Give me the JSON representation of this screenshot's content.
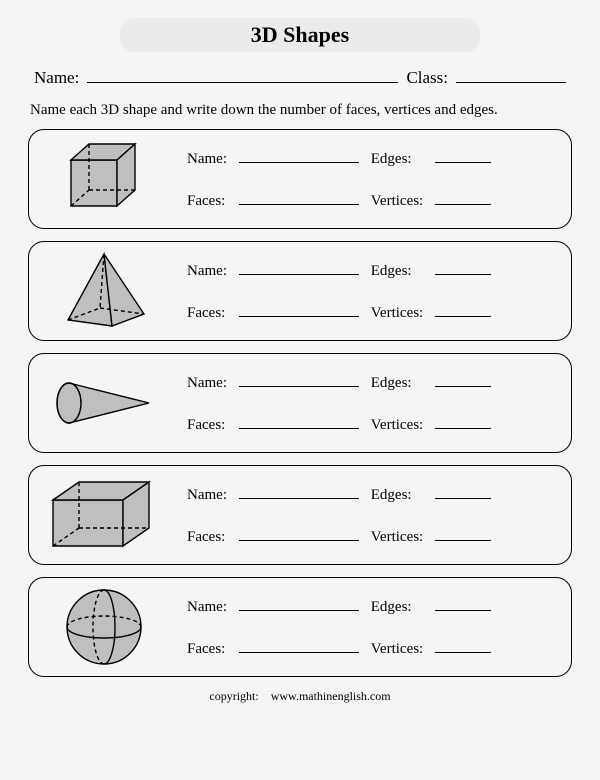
{
  "title": "3D Shapes",
  "header": {
    "name_label": "Name:",
    "class_label": "Class:"
  },
  "instructions": "Name each 3D shape and write down the number of faces, vertices and edges.",
  "field_labels": {
    "name": "Name:",
    "edges": "Edges:",
    "faces": "Faces:",
    "vertices": "Vertices:"
  },
  "footer": {
    "copyright": "copyright:",
    "site": "www.mathinenglish.com"
  },
  "style": {
    "shape_fill": "#bfbfbf",
    "shape_stroke": "#000000",
    "dash": "4,3",
    "stroke_width": 1.4,
    "box_border_radius": 16,
    "title_bg": "#ebebeb",
    "page_bg": "#f5f5f5"
  },
  "shapes": [
    {
      "id": "cube",
      "type": "cube"
    },
    {
      "id": "pyramid",
      "type": "square-pyramid"
    },
    {
      "id": "cone",
      "type": "cone"
    },
    {
      "id": "cuboid",
      "type": "cuboid"
    },
    {
      "id": "sphere",
      "type": "sphere"
    }
  ]
}
